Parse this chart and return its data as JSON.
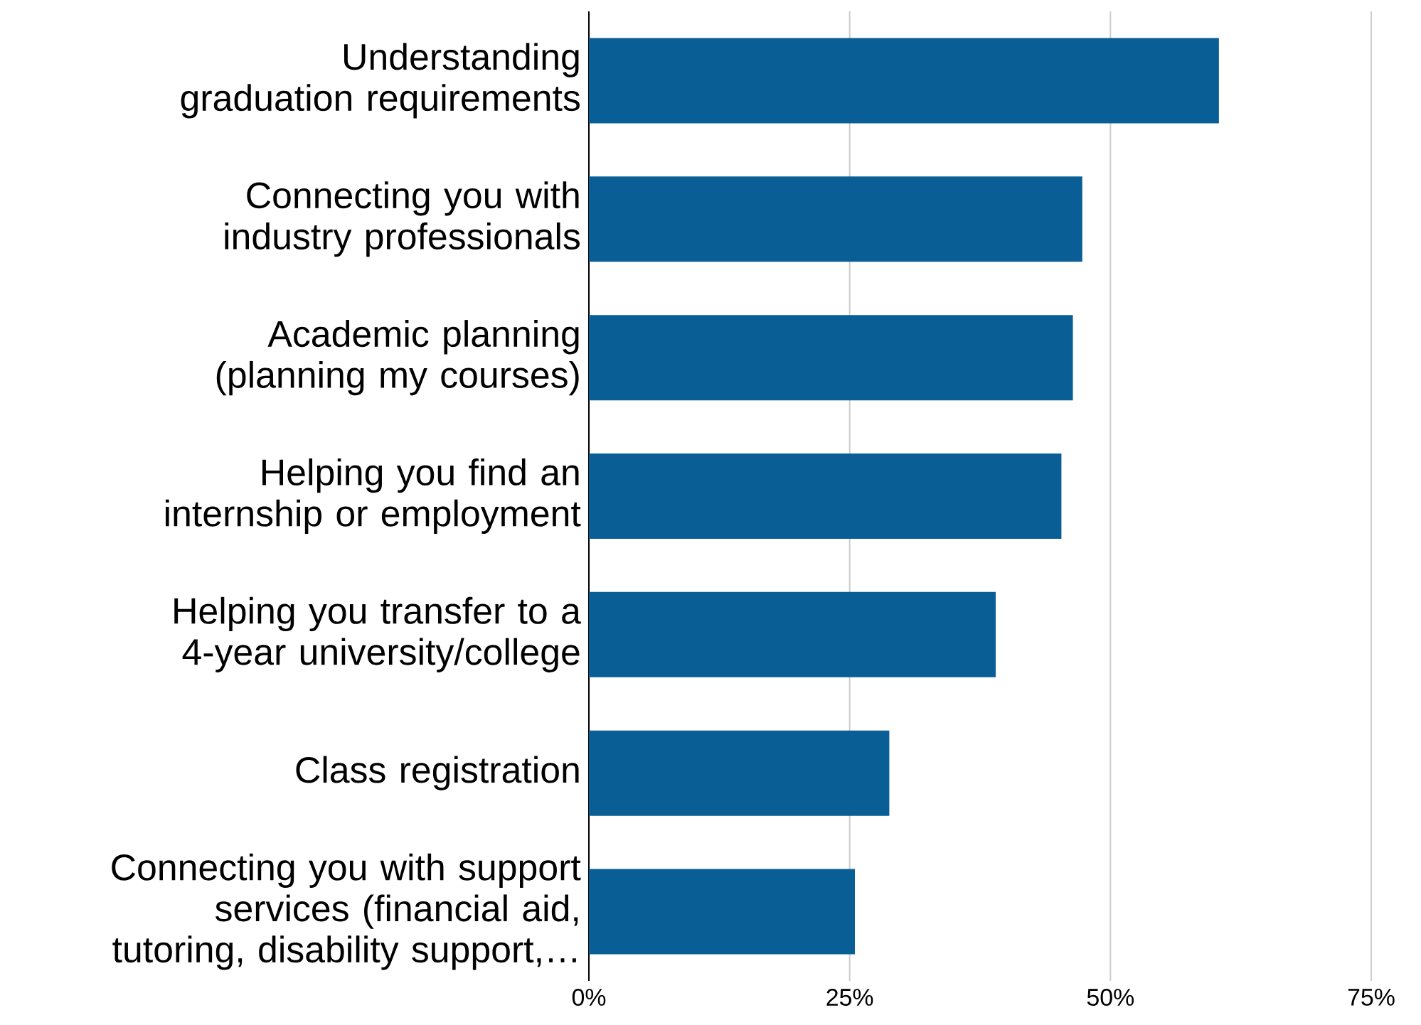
{
  "chart_data": {
    "type": "bar",
    "orientation": "horizontal",
    "categories": [
      "Understanding graduation requirements",
      "Connecting you with industry professionals",
      "Academic planning (planning my courses)",
      "Helping you find an internship or employment",
      "Helping you transfer to a 4-year university/college",
      "Class registration",
      "Connecting you with support services (financial aid, tutoring, disability support,…"
    ],
    "values": [
      60.4,
      47.3,
      46.4,
      45.3,
      39.0,
      28.8,
      25.5
    ],
    "color": "#0a5e96",
    "xlim": [
      0,
      75
    ],
    "xticks": [
      {
        "value": 0,
        "label": "0%"
      },
      {
        "value": 25,
        "label": "25%"
      },
      {
        "value": 50,
        "label": "50%"
      },
      {
        "value": 75,
        "label": "75%"
      }
    ],
    "grid": "x"
  }
}
